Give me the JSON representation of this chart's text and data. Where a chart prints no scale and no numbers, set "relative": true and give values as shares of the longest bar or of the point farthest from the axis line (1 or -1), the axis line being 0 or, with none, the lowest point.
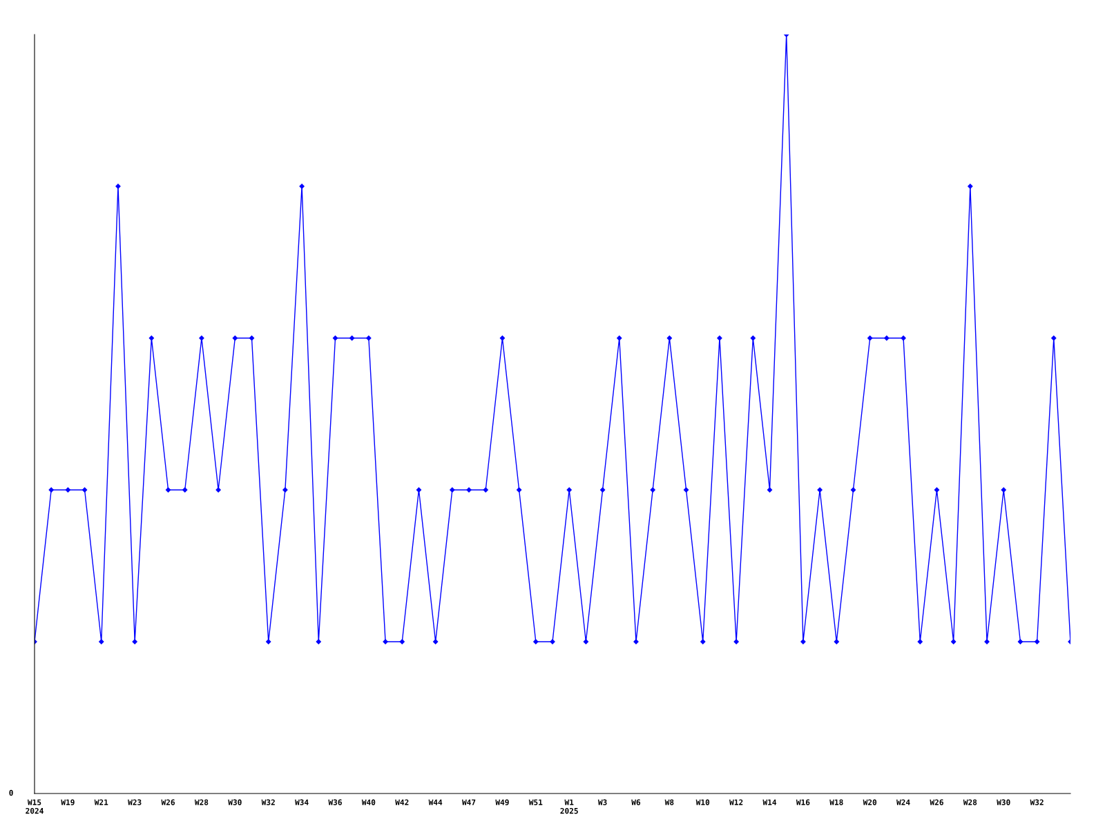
{
  "chart_data": {
    "type": "line",
    "relative": true,
    "marker": "diamond",
    "line_style": "solid",
    "grid": false,
    "legend": false,
    "annotations": [
      "0"
    ],
    "categories": [
      "W15\n2024",
      null,
      "W19",
      null,
      "W21",
      null,
      "W23",
      null,
      "W26",
      null,
      "W28",
      null,
      "W30",
      null,
      "W32",
      null,
      "W34",
      null,
      "W36",
      null,
      "W40",
      null,
      "W42",
      null,
      "W44",
      null,
      "W47",
      null,
      "W49",
      null,
      "W51",
      null,
      "W1\n2025",
      null,
      "W3",
      null,
      "W6",
      null,
      "W8",
      null,
      "W10",
      null,
      "W12",
      null,
      "W14",
      null,
      "W16",
      null,
      "W18",
      null,
      "W20",
      null,
      "W24",
      null,
      "W26",
      null,
      "W28",
      null,
      "W30",
      null,
      "W32",
      null,
      null
    ],
    "series": [
      {
        "color": "#0000ff",
        "values": [
          0.2,
          0.4,
          0.4,
          0.4,
          0.2,
          0.8,
          0.2,
          0.6,
          0.4,
          0.4,
          0.6,
          0.4,
          0.6,
          0.6,
          0.2,
          0.4,
          0.8,
          0.2,
          0.6,
          0.6,
          0.6,
          0.2,
          0.2,
          0.4,
          0.2,
          0.4,
          0.4,
          0.4,
          0.6,
          0.4,
          0.2,
          0.2,
          0.4,
          0.2,
          0.4,
          0.6,
          0.2,
          0.4,
          0.6,
          0.4,
          0.2,
          0.6,
          0.2,
          0.6,
          0.4,
          1.0,
          0.2,
          0.4,
          0.2,
          0.4,
          0.6,
          0.6,
          0.6,
          0.2,
          0.4,
          0.2,
          0.8,
          0.2,
          0.4,
          0.2,
          0.2,
          0.6,
          0.2
        ]
      }
    ]
  }
}
